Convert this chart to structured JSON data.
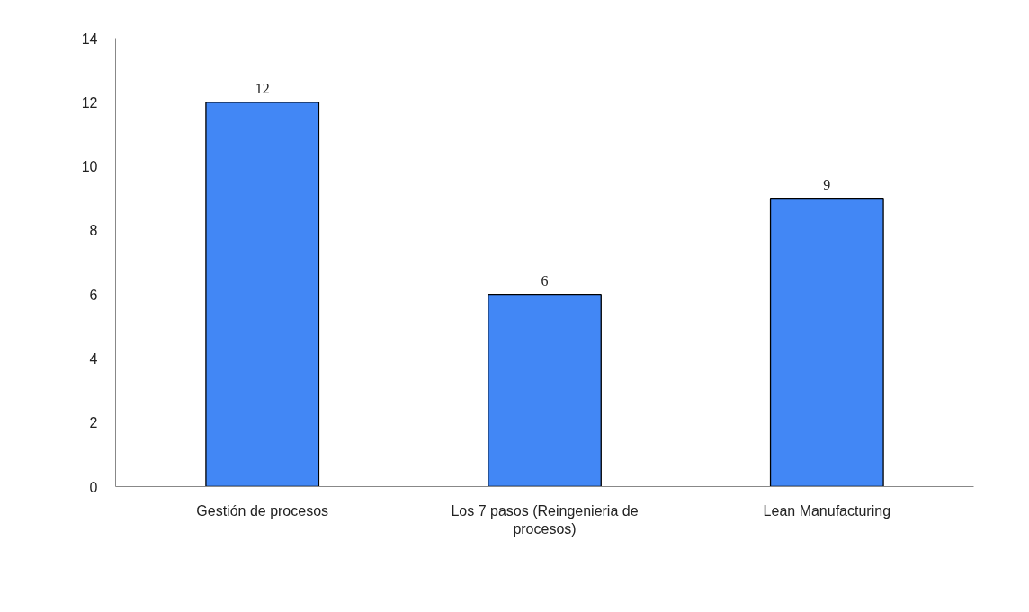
{
  "chart_data": {
    "type": "bar",
    "categories": [
      "Gestión de procesos",
      "Los 7 pasos (Reingenieria de procesos)",
      "Lean Manufacturing"
    ],
    "values": [
      12,
      6,
      9
    ],
    "color": "#4287f5",
    "ylim": [
      0,
      14
    ],
    "yticks": [
      0,
      2,
      4,
      6,
      8,
      10,
      12,
      14
    ],
    "grid": false,
    "data_labels": true
  }
}
